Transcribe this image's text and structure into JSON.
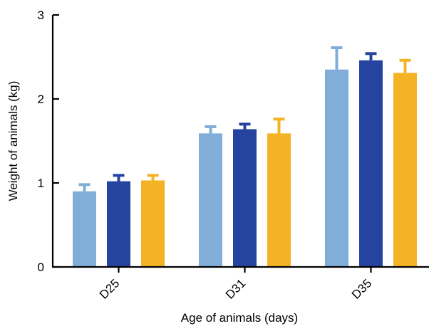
{
  "chart_data": {
    "type": "bar",
    "title": "",
    "xlabel": "Age of animals (days)",
    "ylabel": "Weight of animals (kg)",
    "ylim": [
      0,
      3
    ],
    "yticks": [
      "0",
      "1",
      "2",
      "3"
    ],
    "categories": [
      "D25",
      "D31",
      "D35"
    ],
    "grid": false,
    "legend": "none",
    "series": [
      {
        "color": "#80aed8",
        "values": [
          0.9,
          1.59,
          2.35
        ],
        "errors": [
          0.08,
          0.08,
          0.26
        ]
      },
      {
        "color": "#2444a0",
        "values": [
          1.02,
          1.64,
          2.46
        ],
        "errors": [
          0.07,
          0.06,
          0.08
        ]
      },
      {
        "color": "#f4b325",
        "values": [
          1.03,
          1.59,
          2.31
        ],
        "errors": [
          0.06,
          0.17,
          0.15
        ]
      }
    ]
  }
}
